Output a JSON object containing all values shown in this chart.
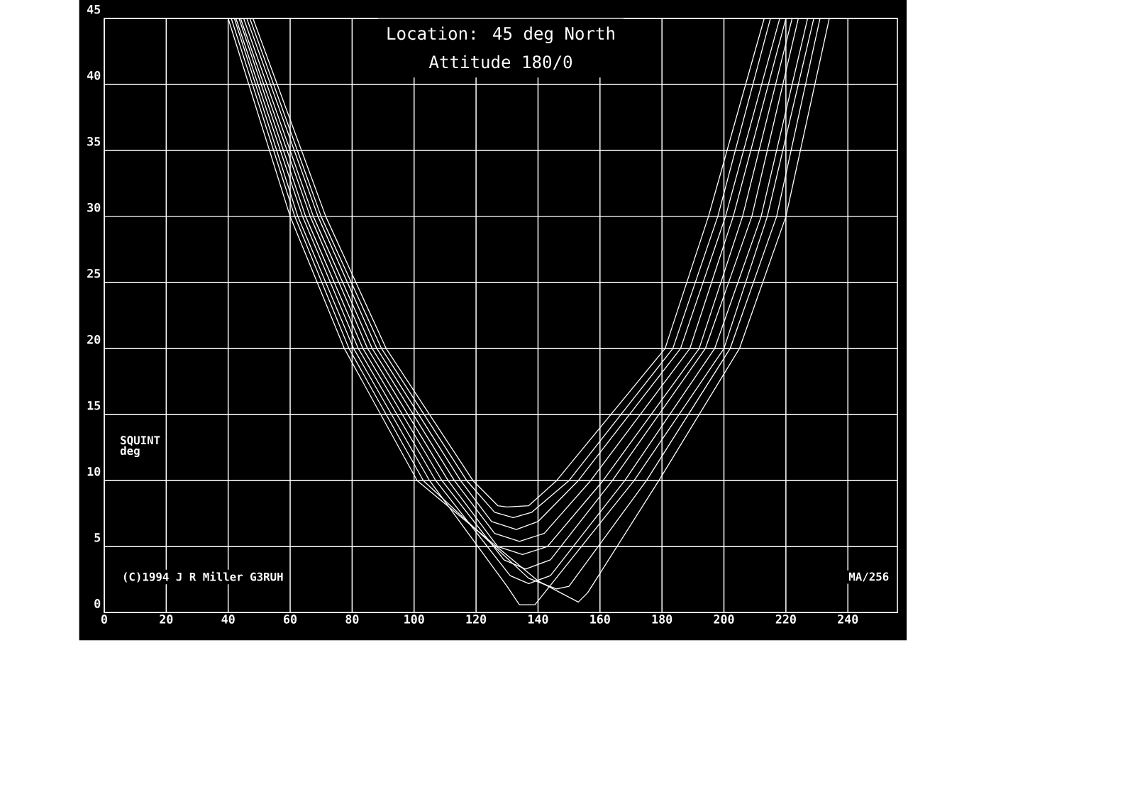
{
  "chart_data": {
    "type": "line",
    "title": "Location: 45 deg North",
    "subtitle": "Attitude 180/0",
    "ylabel": "SQUINT deg",
    "annotations": [
      "(C)1994 J R Miller G3RUH",
      "MA/256"
    ],
    "xlim": [
      0,
      256
    ],
    "ylim": [
      0,
      45
    ],
    "xticks": [
      0,
      20,
      40,
      60,
      80,
      100,
      120,
      140,
      160,
      180,
      200,
      220,
      240
    ],
    "yticks": [
      0,
      5,
      10,
      15,
      20,
      25,
      30,
      35,
      40,
      45
    ],
    "grid": true,
    "marker": "none",
    "line_style": "solid",
    "series": [
      {
        "color": "#ffffff",
        "x": [
          48,
          71.5,
          91,
          119,
          127,
          130,
          137,
          146,
          181,
          195,
          213
        ],
        "values": [
          45,
          30,
          20,
          10,
          8.1,
          8.0,
          8.1,
          10,
          20,
          30,
          45
        ]
      },
      {
        "color": "#ffffff",
        "x": [
          47,
          70,
          89.5,
          117,
          126,
          132,
          138,
          150,
          183.5,
          198,
          215
        ],
        "values": [
          45,
          30,
          20,
          10,
          7.6,
          7.2,
          7.6,
          10,
          20,
          30,
          45
        ]
      },
      {
        "color": "#ffffff",
        "x": [
          46,
          69,
          88,
          115,
          125,
          133,
          140,
          153,
          186,
          200.5,
          218
        ],
        "values": [
          45,
          30,
          20,
          10,
          6.9,
          6.3,
          6.9,
          10,
          20,
          30,
          45
        ]
      },
      {
        "color": "#ffffff",
        "x": [
          45,
          67.5,
          86.5,
          113,
          126,
          134,
          142,
          157,
          189,
          203,
          220
        ],
        "values": [
          45,
          30,
          20,
          10,
          6.0,
          5.4,
          6.0,
          10,
          20,
          30,
          45
        ]
      },
      {
        "color": "#ffffff",
        "x": [
          44,
          66.5,
          85,
          111,
          127,
          135,
          143,
          161,
          192,
          206,
          222
        ],
        "values": [
          45,
          30,
          20,
          10,
          5.0,
          4.4,
          5.0,
          10,
          20,
          30,
          45
        ]
      },
      {
        "color": "#ffffff",
        "x": [
          43.5,
          65,
          83.5,
          109,
          129,
          136,
          144,
          164,
          194,
          209,
          224
        ],
        "values": [
          45,
          30,
          20,
          10,
          4.0,
          3.3,
          4.0,
          10,
          20,
          30,
          45
        ]
      },
      {
        "color": "#ffffff",
        "x": [
          42.5,
          64,
          82,
          107,
          131,
          137,
          144,
          168,
          197,
          212,
          227
        ],
        "values": [
          45,
          30,
          20,
          10,
          2.8,
          2.2,
          2.8,
          10,
          20,
          30,
          45
        ]
      },
      {
        "color": "#ffffff",
        "x": [
          42,
          62.5,
          80.5,
          105,
          130,
          134,
          139,
          171,
          200,
          214,
          229
        ],
        "values": [
          45,
          30,
          20,
          10,
          2.0,
          0.6,
          0.6,
          10,
          20,
          30,
          45
        ]
      },
      {
        "color": "#ffffff",
        "x": [
          41,
          61.5,
          79,
          103,
          137,
          146,
          150,
          175,
          202,
          217,
          231
        ],
        "values": [
          45,
          30,
          20,
          10,
          2.6,
          1.8,
          2.0,
          10,
          20,
          30,
          45
        ]
      },
      {
        "color": "#ffffff",
        "x": [
          40,
          60,
          77.5,
          101,
          140,
          153,
          156,
          179,
          205,
          220,
          234
        ],
        "values": [
          45,
          30,
          20,
          10,
          2.4,
          0.8,
          1.5,
          10,
          20,
          30,
          45
        ]
      }
    ]
  }
}
